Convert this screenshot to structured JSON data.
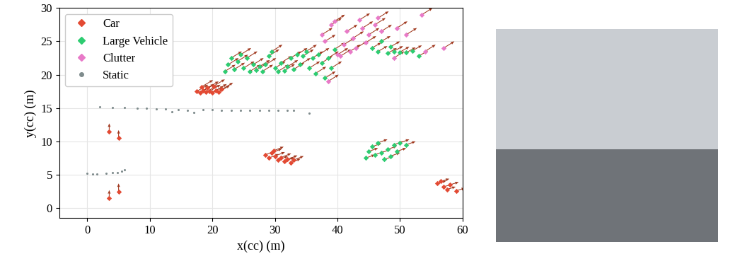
{
  "chart_data": {
    "type": "scatter",
    "x_label": "x(cc) (m)",
    "y_label": "y(cc) (m)",
    "xlim": [
      -4.5,
      60
    ],
    "ylim": [
      -1.5,
      30
    ],
    "xticks": [
      0,
      10,
      20,
      30,
      40,
      50,
      60
    ],
    "yticks": [
      0,
      5,
      10,
      15,
      20,
      25,
      30
    ],
    "grid": true,
    "legend": "upper left",
    "series": [
      {
        "name": "Car",
        "color": "#e34a33",
        "marker": "diamond",
        "x": [
          17.5,
          18,
          18.5,
          19,
          19.5,
          20,
          20.5,
          21,
          18.3,
          19.2,
          21.5,
          20.2,
          28.5,
          29,
          29.5,
          30,
          30.5,
          31,
          31.5,
          32,
          32.5,
          33,
          29.8,
          56,
          57,
          58,
          57.5,
          59,
          56.5,
          3.5,
          5,
          3.5,
          5
        ],
        "y": [
          17.5,
          17.3,
          17.6,
          17.4,
          17.5,
          17.3,
          17.6,
          17.4,
          18.2,
          18.0,
          17.8,
          18.3,
          8,
          7.5,
          8.3,
          7.8,
          7.2,
          7.6,
          7.0,
          7.3,
          6.8,
          7.2,
          8.6,
          3.7,
          3.2,
          3.5,
          2.8,
          2.6,
          4.0,
          11.5,
          10.5,
          1.5,
          2.5
        ],
        "vx": [
          1.8,
          1.8,
          1.8,
          1.8,
          1.8,
          1.8,
          1.8,
          1.8,
          1.8,
          1.8,
          1.8,
          1.8,
          1.6,
          1.6,
          1.6,
          1.6,
          1.6,
          1.6,
          1.6,
          1.6,
          1.6,
          1.6,
          1.6,
          1.4,
          1.4,
          1.4,
          1.4,
          1.4,
          1.4,
          0,
          0,
          0,
          0
        ],
        "vy": [
          1.0,
          1.0,
          1.0,
          1.0,
          1.0,
          1.0,
          1.0,
          1.0,
          1.0,
          1.0,
          1.0,
          1.0,
          0.6,
          0.6,
          0.6,
          0.6,
          0.6,
          0.6,
          0.6,
          0.6,
          0.6,
          0.6,
          0.6,
          0.4,
          0.4,
          0.4,
          0.4,
          0.4,
          0.4,
          1.2,
          1.2,
          1.2,
          1.2
        ]
      },
      {
        "name": "Large Vehicle",
        "color": "#2ecc71",
        "marker": "diamond",
        "x": [
          22,
          22.5,
          23,
          23.5,
          24,
          24.5,
          25,
          25.5,
          26,
          26.5,
          27,
          27.5,
          28,
          28.5,
          29,
          29.5,
          30,
          30.5,
          31,
          31.5,
          32,
          32.5,
          33,
          33.5,
          34,
          34.5,
          35,
          35.5,
          36,
          36.5,
          37,
          37.5,
          38,
          38.5,
          39,
          39.5,
          45.5,
          46.5,
          47,
          48,
          49,
          50,
          51,
          52,
          48.5,
          53,
          44.5,
          45,
          45.5,
          46,
          46.5,
          47,
          47.5,
          48,
          48.5,
          49,
          49.5,
          50,
          51
        ],
        "y": [
          20.5,
          21.5,
          22.5,
          20.8,
          22,
          23,
          21,
          22.5,
          20.5,
          21.5,
          20.7,
          21.2,
          20.5,
          21.5,
          22.8,
          23.5,
          21,
          20.5,
          21.8,
          20.6,
          21.2,
          22.5,
          20.8,
          23,
          21.5,
          22.8,
          23.5,
          21,
          22.5,
          20.2,
          23,
          21.8,
          19.5,
          22.5,
          21,
          23.8,
          24,
          23.5,
          25,
          23.2,
          23.5,
          23.4,
          23.3,
          23.6,
          24.2,
          22.8,
          7.5,
          8.5,
          9.2,
          8,
          9.8,
          8.3,
          7.3,
          8.8,
          7.8,
          9.5,
          8.5,
          9.8,
          9.5
        ],
        "vx": [
          1.7,
          1.7,
          1.7,
          1.7,
          1.7,
          1.7,
          1.7,
          1.7,
          1.7,
          1.7,
          1.7,
          1.7,
          1.7,
          1.7,
          1.7,
          1.7,
          1.7,
          1.7,
          1.7,
          1.7,
          1.7,
          1.7,
          1.7,
          1.7,
          1.7,
          1.7,
          1.7,
          1.7,
          1.7,
          1.7,
          1.7,
          1.7,
          1.7,
          1.7,
          1.7,
          1.7,
          1.5,
          1.5,
          1.5,
          1.5,
          1.5,
          1.5,
          1.5,
          1.5,
          1.5,
          1.5,
          1.5,
          1.5,
          1.5,
          1.5,
          1.5,
          1.5,
          1.5,
          1.5,
          1.5,
          1.5,
          1.5,
          1.5,
          1.5
        ],
        "vy": [
          1.0,
          1.0,
          1.0,
          1.0,
          1.0,
          1.0,
          1.0,
          1.0,
          1.0,
          1.0,
          1.0,
          1.0,
          1.0,
          1.0,
          1.0,
          1.0,
          1.0,
          1.0,
          1.0,
          1.0,
          1.0,
          1.0,
          1.0,
          1.0,
          1.0,
          1.0,
          1.0,
          1.0,
          1.0,
          1.0,
          1.0,
          1.0,
          1.0,
          1.0,
          1.0,
          1.0,
          0.8,
          0.8,
          0.8,
          0.8,
          0.8,
          0.8,
          0.8,
          0.8,
          0.8,
          0.8,
          0.5,
          0.5,
          0.5,
          0.5,
          0.5,
          0.5,
          0.5,
          0.5,
          0.5,
          0.5,
          0.5,
          0.5,
          0.5
        ]
      },
      {
        "name": "Clutter",
        "color": "#e87ac8",
        "marker": "diamond",
        "x": [
          37.5,
          38,
          38.5,
          39,
          39.5,
          40,
          40.5,
          41,
          41.5,
          42,
          42.5,
          43,
          43.5,
          44,
          44.5,
          45,
          46,
          46.5,
          47,
          49,
          49.5,
          51,
          53.5,
          54,
          57
        ],
        "y": [
          26,
          25,
          19,
          27.5,
          28,
          23,
          22.8,
          24.5,
          26.5,
          23.5,
          25.5,
          24,
          28.2,
          27,
          24.8,
          26,
          27.5,
          28.5,
          26.5,
          22.5,
          27,
          26,
          29,
          23.5,
          24
        ],
        "vx": [
          1.7,
          1.7,
          1.7,
          1.7,
          1.7,
          1.7,
          1.7,
          1.7,
          1.7,
          1.7,
          1.7,
          1.7,
          1.7,
          1.7,
          1.7,
          1.7,
          1.7,
          1.7,
          1.7,
          1.7,
          1.7,
          1.7,
          1.7,
          1.7,
          1.7
        ],
        "vy": [
          1.0,
          1.0,
          1.0,
          1.0,
          1.0,
          1.0,
          1.0,
          1.0,
          1.0,
          1.0,
          1.0,
          1.0,
          1.0,
          1.0,
          1.0,
          1.0,
          1.0,
          1.0,
          1.0,
          1.0,
          1.0,
          1.0,
          1.0,
          1.0,
          1.0
        ]
      },
      {
        "name": "Static",
        "color": "#7f8c8d",
        "marker": "circle",
        "x": [
          2,
          4,
          6,
          8,
          9.5,
          11,
          12.5,
          13.5,
          14.5,
          16,
          17,
          18.5,
          20,
          21.5,
          23,
          24.5,
          26,
          27.5,
          29,
          30.5,
          32,
          33,
          35.5,
          0,
          0.8,
          1.5,
          3,
          4,
          4.8,
          5.5,
          6
        ],
        "y": [
          15.2,
          15.1,
          15.1,
          15.0,
          15.0,
          14.9,
          14.9,
          14.4,
          14.8,
          14.7,
          14.3,
          14.8,
          14.8,
          14.7,
          14.7,
          14.6,
          14.7,
          14.6,
          14.7,
          14.6,
          14.6,
          14.6,
          14.2,
          5.2,
          5.1,
          5.1,
          5.2,
          5.3,
          5.3,
          5.5,
          5.7
        ]
      }
    ]
  }
}
